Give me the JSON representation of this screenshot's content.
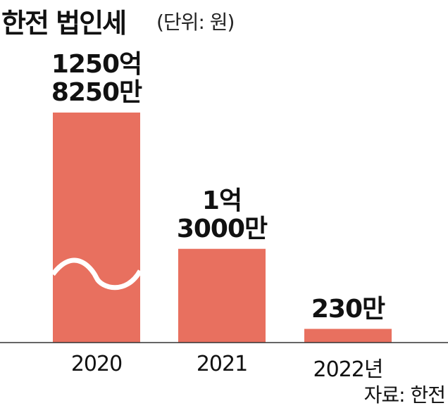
{
  "chart_data": {
    "type": "bar",
    "title": "한전 법인세",
    "subtitle": "(단위: 원)",
    "categories": [
      "2020",
      "2021",
      "2022년"
    ],
    "values": [
      125082500000,
      130000000,
      2300000
    ],
    "value_labels": [
      "1250억\n8250만",
      "1억\n3000만",
      "230만"
    ],
    "color": "#e8705f",
    "log_scale": true,
    "axis_break": true,
    "source": "자료: 한전"
  }
}
